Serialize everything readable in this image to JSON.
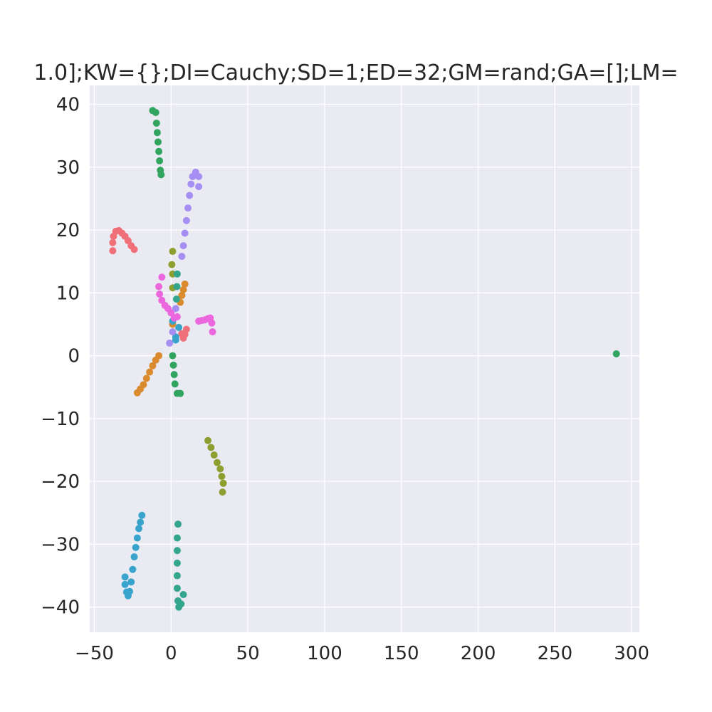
{
  "chart_data": {
    "type": "scatter",
    "title": "1.0];KW={};DI=Cauchy;SD=1;ED=32;GM=rand;GA=[];LM=",
    "xlabel": "",
    "ylabel": "",
    "xlim": [
      -53,
      305
    ],
    "ylim": [
      -44,
      43
    ],
    "x_ticks": [
      -50,
      0,
      50,
      100,
      150,
      200,
      250,
      300
    ],
    "x_tick_labels": [
      "−50",
      "0",
      "50",
      "100",
      "150",
      "200",
      "250",
      "300"
    ],
    "y_ticks": [
      -40,
      -30,
      -20,
      -10,
      0,
      10,
      20,
      30,
      40
    ],
    "y_tick_labels": [
      "−40",
      "−30",
      "−20",
      "−10",
      "0",
      "10",
      "20",
      "30",
      "40"
    ],
    "grid": true,
    "legend": "none",
    "background_color": "#eaeaf2",
    "grid_color": "#ffffff",
    "series": [
      {
        "color": "#f0707a",
        "points": [
          [
            -38,
            16.7
          ],
          [
            -38,
            18
          ],
          [
            -37.5,
            19
          ],
          [
            -36,
            19.8
          ],
          [
            -34,
            19.9
          ],
          [
            -32,
            19.5
          ],
          [
            -30,
            19
          ],
          [
            -28,
            18.3
          ],
          [
            -26,
            17.5
          ],
          [
            -24,
            16.9
          ],
          [
            10,
            4.2
          ],
          [
            9,
            3.4
          ],
          [
            8,
            2.8
          ],
          [
            7,
            3.5
          ]
        ]
      },
      {
        "color": "#d98b2e",
        "points": [
          [
            -22,
            -5.9
          ],
          [
            -20,
            -5.3
          ],
          [
            -18,
            -4.6
          ],
          [
            -16,
            -3.6
          ],
          [
            -14,
            -2.6
          ],
          [
            -12,
            -1.6
          ],
          [
            -10,
            -0.7
          ],
          [
            -8,
            0
          ],
          [
            1,
            5
          ],
          [
            6,
            8.5
          ],
          [
            7,
            9.6
          ],
          [
            8,
            10.5
          ],
          [
            9,
            11.4
          ]
        ]
      },
      {
        "color": "#8e9f32",
        "points": [
          [
            1,
            16.6
          ],
          [
            0.5,
            14.5
          ],
          [
            1,
            13
          ],
          [
            1,
            10.8
          ],
          [
            24,
            -13.5
          ],
          [
            26,
            -14.6
          ],
          [
            28,
            -15.8
          ],
          [
            30,
            -17
          ],
          [
            32,
            -18
          ],
          [
            33,
            -19.2
          ],
          [
            34,
            -20.3
          ],
          [
            33.5,
            -21.7
          ]
        ]
      },
      {
        "color": "#31a560",
        "points": [
          [
            -12,
            39
          ],
          [
            -10,
            38.7
          ],
          [
            -9.5,
            37
          ],
          [
            -9,
            35.5
          ],
          [
            -8.5,
            34
          ],
          [
            -8,
            32.5
          ],
          [
            -7.5,
            31
          ],
          [
            -7,
            29.5
          ],
          [
            -6.5,
            28.8
          ],
          [
            1,
            0
          ],
          [
            1.5,
            -1.5
          ],
          [
            2,
            -3
          ],
          [
            2.5,
            -4.5
          ],
          [
            4,
            -6
          ],
          [
            6,
            -6
          ],
          [
            290,
            0.3
          ]
        ]
      },
      {
        "color": "#35a68e",
        "points": [
          [
            4.5,
            -26.8
          ],
          [
            4,
            -29
          ],
          [
            4,
            -31
          ],
          [
            4,
            -33
          ],
          [
            4,
            -35
          ],
          [
            4,
            -37
          ],
          [
            4.5,
            -39
          ],
          [
            5,
            -40
          ],
          [
            6.5,
            -39.5
          ],
          [
            8,
            -38
          ],
          [
            3.5,
            9
          ],
          [
            3.8,
            11
          ],
          [
            4,
            13
          ]
        ]
      },
      {
        "color": "#38a4cc",
        "points": [
          [
            -30,
            -35.2
          ],
          [
            -30,
            -36.4
          ],
          [
            -29,
            -37.6
          ],
          [
            -28,
            -38.2
          ],
          [
            -27,
            -37.5
          ],
          [
            -26,
            -36
          ],
          [
            -25,
            -34
          ],
          [
            -24,
            -32
          ],
          [
            -23,
            -30.5
          ],
          [
            -22,
            -29
          ],
          [
            -21,
            -27.5
          ],
          [
            -20,
            -26.5
          ],
          [
            -19,
            -25.4
          ],
          [
            1,
            5.5
          ],
          [
            3,
            3
          ],
          [
            3,
            2.5
          ],
          [
            5,
            4.5
          ]
        ]
      },
      {
        "color": "#a68ff2",
        "points": [
          [
            -1,
            2
          ],
          [
            1,
            3.8
          ],
          [
            2,
            6
          ],
          [
            3,
            7.5
          ],
          [
            7,
            15.8
          ],
          [
            8,
            17.5
          ],
          [
            9,
            19.5
          ],
          [
            10,
            21.5
          ],
          [
            11,
            23.5
          ],
          [
            12,
            25.5
          ],
          [
            13,
            27.3
          ],
          [
            14,
            28.5
          ],
          [
            16,
            29.2
          ],
          [
            18,
            28.5
          ],
          [
            18,
            26.9
          ]
        ]
      },
      {
        "color": "#ea67dd",
        "points": [
          [
            -6,
            12.5
          ],
          [
            -8,
            11
          ],
          [
            -7.5,
            9.8
          ],
          [
            -6,
            8.8
          ],
          [
            -4,
            8
          ],
          [
            -2,
            7.5
          ],
          [
            0,
            6.8
          ],
          [
            2,
            6
          ],
          [
            4,
            6.2
          ],
          [
            18,
            5.5
          ],
          [
            20,
            5.6
          ],
          [
            22,
            5.7
          ],
          [
            24,
            5.9
          ],
          [
            25.5,
            6
          ],
          [
            26.5,
            5.2
          ],
          [
            27,
            3.8
          ]
        ]
      }
    ]
  }
}
